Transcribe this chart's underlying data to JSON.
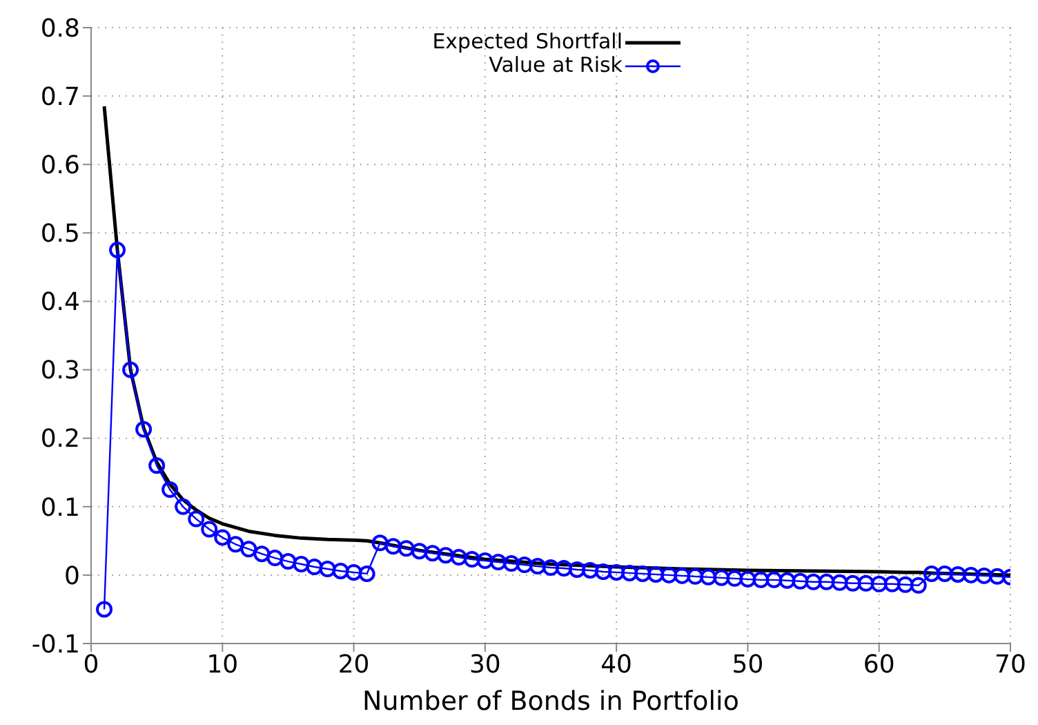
{
  "chart_data": {
    "type": "line",
    "xlabel": "Number of Bonds in Portfolio",
    "xlim": [
      0,
      70
    ],
    "xticks": [
      0,
      10,
      20,
      30,
      40,
      50,
      60,
      70
    ],
    "ylim": [
      -0.1,
      0.8
    ],
    "yticks": [
      -0.1,
      0,
      0.1,
      0.2,
      0.3,
      0.4,
      0.5,
      0.6,
      0.7,
      0.8
    ],
    "grid": true,
    "legend": "top",
    "series": [
      {
        "name": "Expected Shortfall",
        "color": "#000000",
        "marker": "none",
        "x": [
          1,
          2,
          3,
          4,
          5,
          6,
          7,
          8,
          9,
          10,
          12,
          14,
          16,
          18,
          20,
          21,
          22,
          25,
          30,
          35,
          40,
          45,
          50,
          55,
          60,
          62,
          63,
          64,
          66,
          68,
          70
        ],
        "values": [
          0.685,
          0.475,
          0.3,
          0.215,
          0.165,
          0.133,
          0.11,
          0.095,
          0.083,
          0.075,
          0.064,
          0.058,
          0.054,
          0.052,
          0.051,
          0.05,
          0.047,
          0.036,
          0.023,
          0.016,
          0.012,
          0.009,
          0.007,
          0.006,
          0.005,
          0.004,
          0.004,
          0.003,
          0.002,
          0.001,
          0.0
        ]
      },
      {
        "name": "Value at Risk",
        "color": "#0000ff",
        "marker": "circle",
        "x": [
          1,
          2,
          3,
          4,
          5,
          6,
          7,
          8,
          9,
          10,
          11,
          12,
          13,
          14,
          15,
          16,
          17,
          18,
          19,
          20,
          21,
          22,
          23,
          24,
          25,
          26,
          27,
          28,
          29,
          30,
          31,
          32,
          33,
          34,
          35,
          36,
          37,
          38,
          39,
          40,
          41,
          42,
          43,
          44,
          45,
          46,
          47,
          48,
          49,
          50,
          51,
          52,
          53,
          54,
          55,
          56,
          57,
          58,
          59,
          60,
          61,
          62,
          63,
          64,
          65,
          66,
          67,
          68,
          69,
          70
        ],
        "values": [
          -0.05,
          0.475,
          0.3,
          0.213,
          0.16,
          0.125,
          0.1,
          0.082,
          0.067,
          0.055,
          0.045,
          0.038,
          0.031,
          0.025,
          0.02,
          0.016,
          0.012,
          0.009,
          0.006,
          0.004,
          0.002,
          0.047,
          0.042,
          0.039,
          0.035,
          0.032,
          0.029,
          0.026,
          0.023,
          0.021,
          0.019,
          0.017,
          0.015,
          0.013,
          0.011,
          0.01,
          0.008,
          0.007,
          0.005,
          0.004,
          0.003,
          0.002,
          0.001,
          0.0,
          -0.001,
          -0.002,
          -0.003,
          -0.004,
          -0.005,
          -0.006,
          -0.007,
          -0.007,
          -0.008,
          -0.009,
          -0.01,
          -0.01,
          -0.011,
          -0.012,
          -0.012,
          -0.013,
          -0.013,
          -0.014,
          -0.015,
          0.002,
          0.002,
          0.001,
          0.0,
          -0.001,
          -0.002,
          -0.003
        ]
      }
    ]
  }
}
